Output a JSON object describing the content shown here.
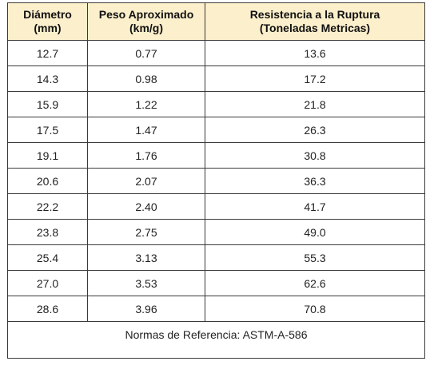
{
  "table": {
    "headers": [
      {
        "line1": "Diámetro",
        "line2": "(mm)"
      },
      {
        "line1": "Peso Aproximado",
        "line2": "(km/g)"
      },
      {
        "line1": "Resistencia a la Ruptura",
        "line2": "(Toneladas Metricas)"
      }
    ],
    "rows": [
      [
        "12.7",
        "0.77",
        "13.6"
      ],
      [
        "14.3",
        "0.98",
        "17.2"
      ],
      [
        "15.9",
        "1.22",
        "21.8"
      ],
      [
        "17.5",
        "1.47",
        "26.3"
      ],
      [
        "19.1",
        "1.76",
        "30.8"
      ],
      [
        "20.6",
        "2.07",
        "36.3"
      ],
      [
        "22.2",
        "2.40",
        "41.7"
      ],
      [
        "23.8",
        "2.75",
        "49.0"
      ],
      [
        "25.4",
        "3.13",
        "55.3"
      ],
      [
        "27.0",
        "3.53",
        "62.6"
      ],
      [
        "28.6",
        "3.96",
        "70.8"
      ]
    ],
    "footer": "Normas de Referencia:  ASTM-A-586"
  },
  "colors": {
    "header_bg": "#fcefcb",
    "border": "#3a3a3a"
  }
}
